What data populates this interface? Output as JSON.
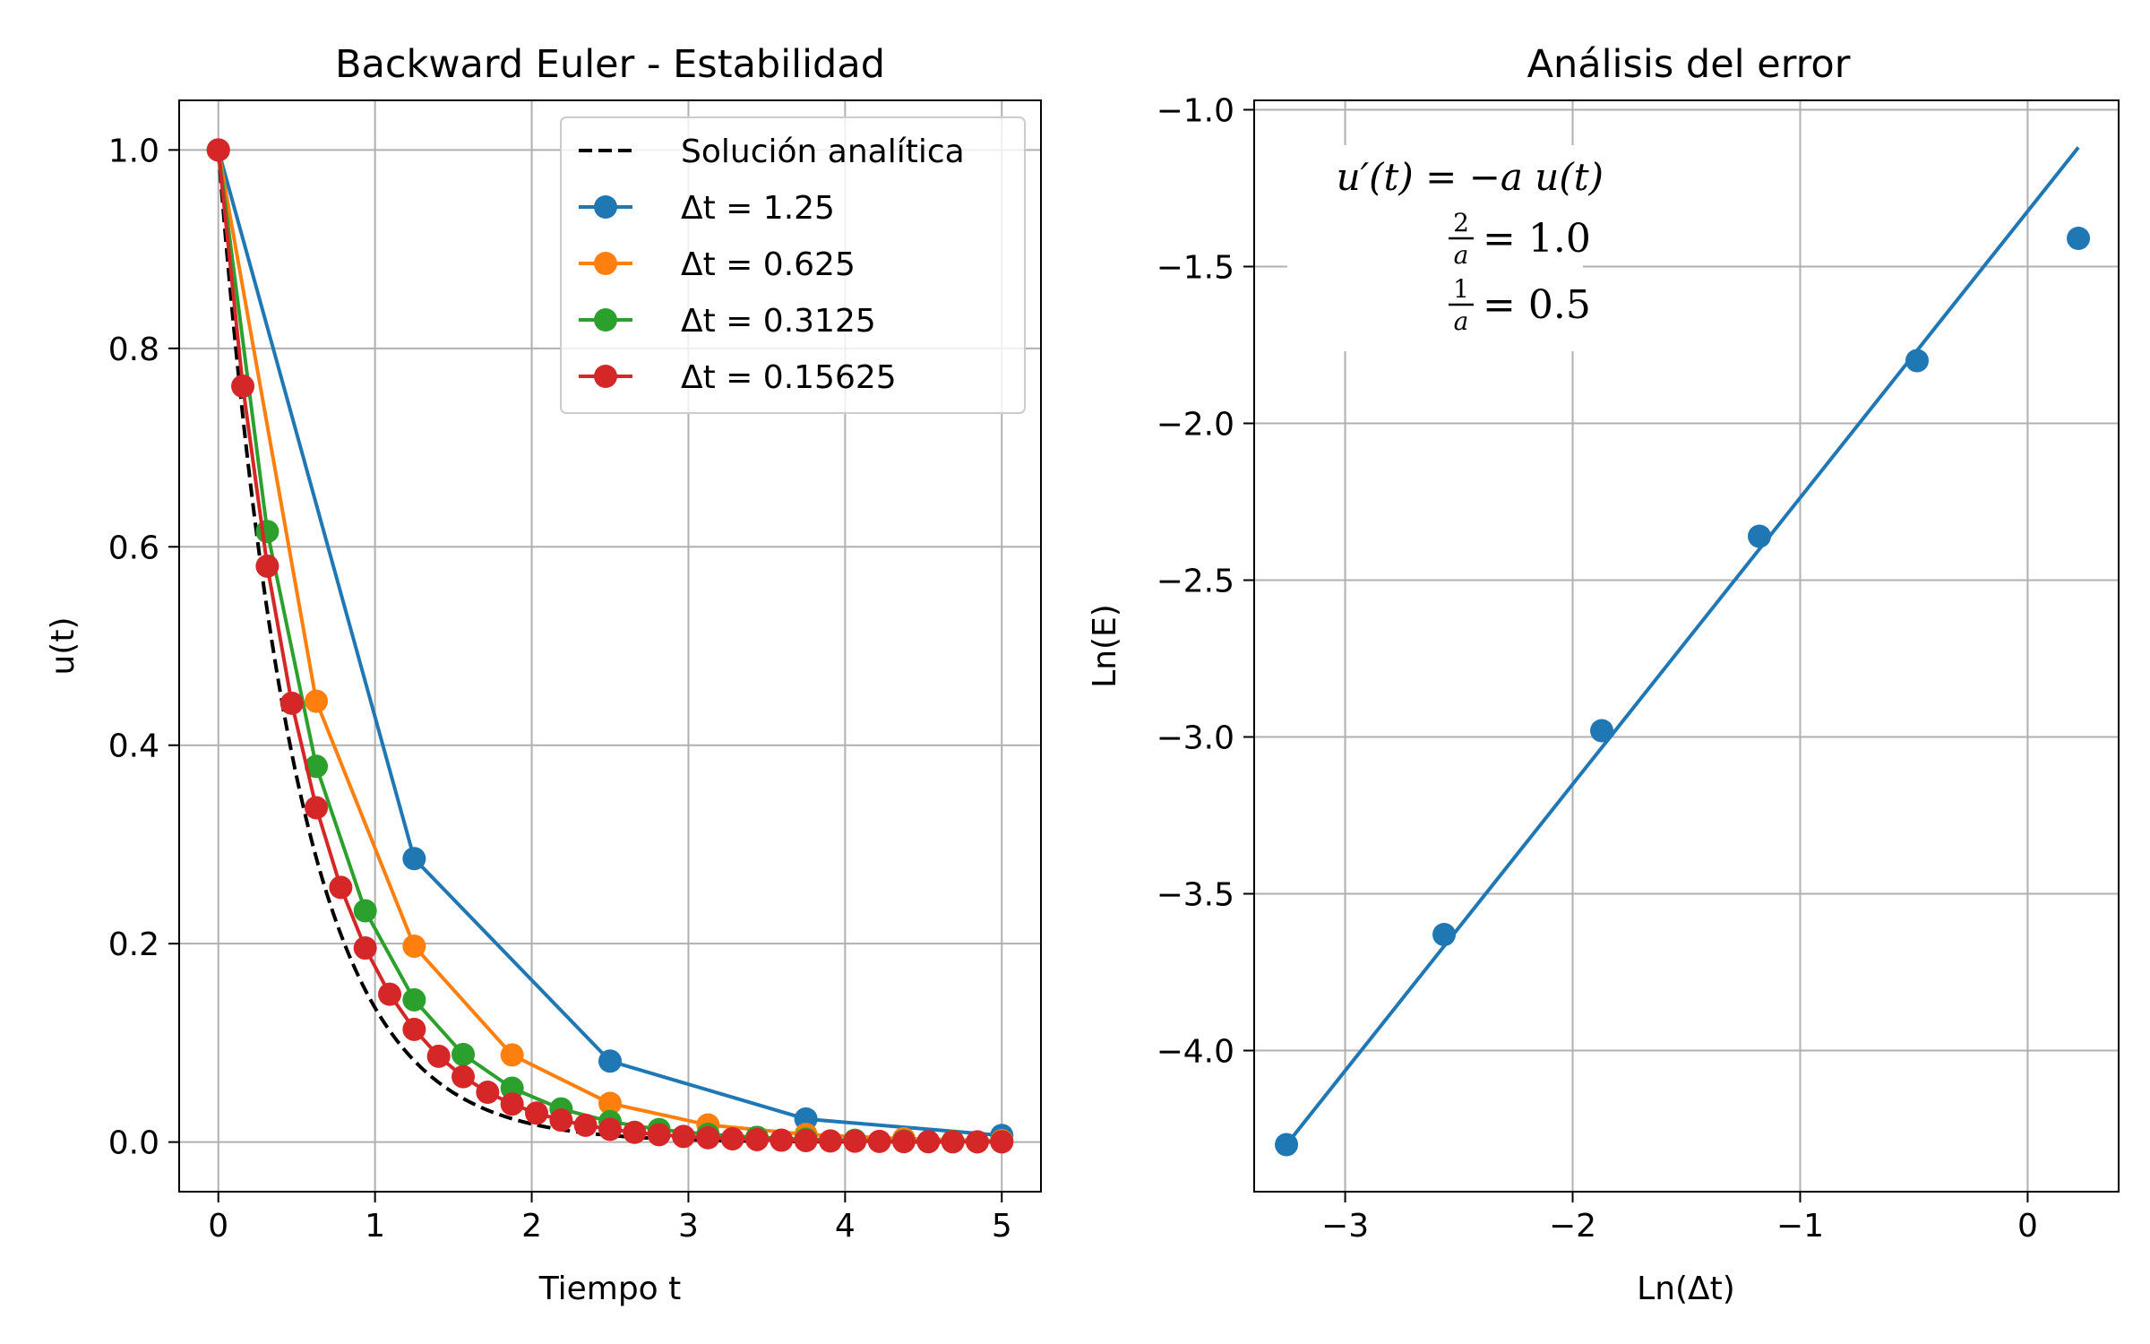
{
  "chart_data": [
    {
      "type": "line",
      "title": "Backward Euler - Estabilidad",
      "xlabel": "Tiempo t",
      "ylabel": "u(t)",
      "xlim": [
        -0.25,
        5.25
      ],
      "ylim": [
        -0.05,
        1.05
      ],
      "xticks": [
        0,
        1,
        2,
        3,
        4,
        5
      ],
      "yticks": [
        0.0,
        0.2,
        0.4,
        0.6,
        0.8,
        1.0
      ],
      "xtick_labels": [
        "0",
        "1",
        "2",
        "3",
        "4",
        "5"
      ],
      "ytick_labels": [
        "0.0",
        "0.2",
        "0.4",
        "0.6",
        "0.8",
        "1.0"
      ],
      "grid": true,
      "legend_position": "top-right",
      "analytic": {
        "name": "Solución analítica",
        "a": 2.0,
        "x_start": 0,
        "x_end": 5,
        "color": "#000000"
      },
      "series": [
        {
          "name": "Δt = 1.25",
          "color": "#1f77b4",
          "x": [
            0,
            1.25,
            2.5,
            3.75,
            5
          ],
          "y": [
            1.0,
            0.2857,
            0.0816,
            0.0233,
            0.0067
          ]
        },
        {
          "name": "Δt = 0.625",
          "color": "#ff7f0e",
          "x": [
            0,
            0.625,
            1.25,
            1.875,
            2.5,
            3.125,
            3.75,
            4.375,
            5
          ],
          "y": [
            1.0,
            0.4444,
            0.1975,
            0.0878,
            0.039,
            0.0173,
            0.0077,
            0.0034,
            0.0015
          ]
        },
        {
          "name": "Δt = 0.3125",
          "color": "#2ca02c",
          "x": [
            0,
            0.3125,
            0.625,
            0.9375,
            1.25,
            1.5625,
            1.875,
            2.1875,
            2.5,
            2.8125,
            3.125,
            3.4375,
            3.75,
            4.0625,
            4.375,
            4.6875,
            5
          ],
          "y": [
            1.0,
            0.6154,
            0.3787,
            0.2331,
            0.1434,
            0.0883,
            0.0543,
            0.0334,
            0.0206,
            0.0127,
            0.0078,
            0.0048,
            0.003,
            0.0018,
            0.0011,
            0.0007,
            0.0004
          ]
        },
        {
          "name": "Δt = 0.15625",
          "color": "#d62728",
          "x": [
            0,
            0.15625,
            0.3125,
            0.46875,
            0.625,
            0.78125,
            0.9375,
            1.09375,
            1.25,
            1.40625,
            1.5625,
            1.71875,
            1.875,
            2.03125,
            2.1875,
            2.34375,
            2.5,
            2.65625,
            2.8125,
            2.96875,
            3.125,
            3.28125,
            3.4375,
            3.59375,
            3.75,
            3.90625,
            4.0625,
            4.21875,
            4.375,
            4.53125,
            4.6875,
            4.84375,
            5
          ],
          "y": [
            1.0,
            0.7619,
            0.5805,
            0.4423,
            0.337,
            0.2567,
            0.1956,
            0.149,
            0.1136,
            0.0865,
            0.0659,
            0.0502,
            0.0383,
            0.0292,
            0.0222,
            0.0169,
            0.0129,
            0.0098,
            0.0075,
            0.0057,
            0.0044,
            0.0033,
            0.0025,
            0.0019,
            0.0015,
            0.0011,
            0.0009,
            0.0007,
            0.0005,
            0.0004,
            0.0003,
            0.0002,
            0.0002
          ]
        }
      ]
    },
    {
      "type": "scatter",
      "title": "Análisis del error",
      "xlabel": "Ln(Δt)",
      "ylabel": "Ln(E)",
      "xlim": [
        -3.4,
        0.4
      ],
      "ylim": [
        -4.45,
        -0.97
      ],
      "xticks": [
        -3,
        -2,
        -1,
        0
      ],
      "yticks": [
        -4.0,
        -3.5,
        -3.0,
        -2.5,
        -2.0,
        -1.5,
        -1.0
      ],
      "xtick_labels": [
        "−3",
        "−2",
        "−1",
        "0"
      ],
      "ytick_labels": [
        "−4.0",
        "−3.5",
        "−3.0",
        "−2.5",
        "−2.0",
        "−1.5",
        "−1.0"
      ],
      "grid": true,
      "color": "#1f77b4",
      "points": {
        "x": [
          -3.258,
          -2.565,
          -1.872,
          -1.179,
          -0.486,
          0.223
        ],
        "y": [
          -4.3,
          -3.63,
          -2.98,
          -2.36,
          -1.8,
          -1.41
        ]
      },
      "fit_line": {
        "x": [
          -3.258,
          0.223
        ],
        "y": [
          -4.3,
          -1.12
        ]
      },
      "annotation": {
        "equation": "u′(t) = −a u(t)",
        "ratio1": {
          "num": "2",
          "den": "a",
          "value": "= 1.0"
        },
        "ratio2": {
          "num": "1",
          "den": "a",
          "value": "= 0.5"
        }
      }
    }
  ]
}
